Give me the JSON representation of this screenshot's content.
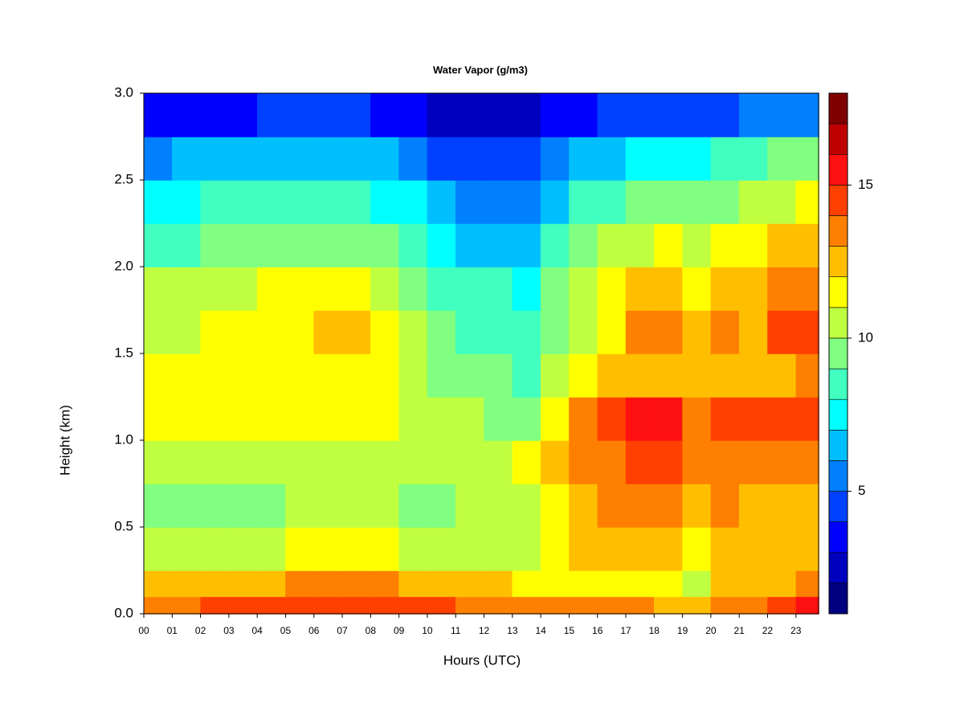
{
  "chart_data": {
    "type": "contour",
    "title": "Water Vapor (g/m3)",
    "x_label": "Hours (UTC)",
    "y_label": "Height (km)",
    "x": [
      0,
      1,
      2,
      3,
      4,
      5,
      6,
      7,
      8,
      9,
      10,
      11,
      12,
      13,
      14,
      15,
      16,
      17,
      18,
      19,
      20,
      21,
      22,
      23
    ],
    "y": [
      0,
      0.1,
      0.25,
      0.5,
      0.75,
      1.0,
      1.25,
      1.5,
      1.75,
      2.0,
      2.25,
      2.5,
      2.75
    ],
    "z": [
      [
        13.5,
        13.5,
        14,
        14,
        14,
        14.5,
        14.5,
        14.5,
        14.5,
        14,
        14,
        13.5,
        13.5,
        13,
        13,
        13,
        13,
        13,
        12.5,
        12.5,
        13.5,
        13.5,
        14,
        15
      ],
      [
        12,
        12,
        12.5,
        12.5,
        12.5,
        13,
        13,
        13,
        13,
        12.5,
        12.5,
        12,
        12,
        11.5,
        11.5,
        11.5,
        11.5,
        11,
        11,
        10.5,
        12,
        12,
        12.5,
        13
      ],
      [
        10.5,
        10.5,
        10.5,
        10.5,
        10.5,
        11,
        11,
        11,
        11,
        10.5,
        10.5,
        10.5,
        10,
        10.5,
        11,
        12,
        12,
        12,
        12,
        11,
        12,
        12,
        12.5,
        12.5
      ],
      [
        9.5,
        9.5,
        9.5,
        9.5,
        9.5,
        10,
        10,
        10,
        10,
        9.5,
        9.5,
        10,
        10,
        10.5,
        11,
        12.5,
        13,
        13,
        13,
        12,
        13,
        12.5,
        12.5,
        12.5
      ],
      [
        10,
        10,
        10,
        10,
        10,
        10,
        10,
        10,
        10,
        10,
        10,
        10,
        10,
        11,
        12,
        13,
        13.5,
        14,
        14,
        13,
        13.5,
        13,
        13.5,
        13.5
      ],
      [
        11,
        11,
        11,
        11,
        11,
        11,
        11,
        11,
        11,
        10.5,
        10.5,
        10,
        9.5,
        9,
        11,
        13.5,
        14,
        15,
        15,
        13.5,
        14.5,
        14,
        14.5,
        14.5
      ],
      [
        11,
        11,
        11,
        11,
        11.5,
        11.5,
        11.5,
        11.5,
        11,
        10.5,
        9.5,
        9.5,
        9,
        8.5,
        10,
        11,
        12,
        12.5,
        12.5,
        12,
        12.5,
        12,
        12.5,
        13
      ],
      [
        10.5,
        10.5,
        11,
        11,
        11.5,
        11.5,
        12,
        12,
        11.5,
        10.5,
        9,
        8.5,
        8.5,
        8,
        9.5,
        10.5,
        11.5,
        13,
        13.5,
        12,
        13,
        12.5,
        14,
        14
      ],
      [
        10,
        10,
        10.5,
        10.5,
        11,
        11,
        11.5,
        11,
        10.5,
        9.5,
        8.5,
        8,
        8,
        7.5,
        9,
        10,
        11,
        12,
        12.5,
        11.5,
        12.5,
        12,
        13.5,
        13.5
      ],
      [
        8.5,
        8.5,
        9,
        9,
        9.5,
        9.5,
        9.5,
        9.5,
        9,
        8,
        7,
        6.5,
        6.5,
        6.5,
        8,
        9,
        10,
        10.5,
        11,
        10.5,
        11,
        11,
        12,
        12.5
      ],
      [
        7.5,
        7.5,
        8,
        8,
        8,
        8.5,
        8.5,
        8,
        7.5,
        7,
        6,
        5.5,
        5.5,
        5.5,
        6.5,
        8,
        8.5,
        9,
        9.5,
        9,
        9.5,
        10,
        10.5,
        11
      ],
      [
        5.5,
        6,
        6,
        6,
        6,
        6.5,
        6.5,
        6,
        6,
        5,
        4.5,
        4,
        4,
        4,
        5,
        6,
        6.5,
        7,
        7.5,
        7.5,
        8,
        8.5,
        9,
        9
      ],
      [
        3.5,
        3.5,
        3.5,
        3.5,
        4,
        4,
        4,
        4,
        3.5,
        3,
        2.5,
        2.5,
        2.5,
        2.5,
        3,
        3.5,
        4,
        4.5,
        4.5,
        4.5,
        4.5,
        5,
        5,
        5.5
      ]
    ],
    "xlim": [
      0,
      23.8
    ],
    "ylim": [
      0,
      3
    ],
    "xticks": [
      {
        "value": 0,
        "label": "00"
      },
      {
        "value": 1,
        "label": "01"
      },
      {
        "value": 2,
        "label": "02"
      },
      {
        "value": 3,
        "label": "03"
      },
      {
        "value": 4,
        "label": "04"
      },
      {
        "value": 5,
        "label": "05"
      },
      {
        "value": 6,
        "label": "06"
      },
      {
        "value": 7,
        "label": "07"
      },
      {
        "value": 8,
        "label": "08"
      },
      {
        "value": 9,
        "label": "09"
      },
      10,
      11,
      12,
      13,
      14,
      15,
      16,
      17,
      18,
      19,
      20,
      21,
      22,
      23
    ],
    "yticks": [
      {
        "value": 0,
        "label": "0.0"
      },
      0.5,
      {
        "value": 1,
        "label": "1.0"
      },
      1.5,
      {
        "value": 2,
        "label": "2.0"
      },
      2.5,
      {
        "value": 3,
        "label": "3.0"
      }
    ],
    "levels": [
      1,
      2,
      3,
      4,
      5,
      6,
      7,
      8,
      9,
      10,
      11,
      12,
      13,
      14,
      15,
      16,
      17,
      18
    ],
    "colors": [
      "#000080",
      "#0000bf",
      "#0000ff",
      "#0040ff",
      "#0080ff",
      "#00bfff",
      "#00ffff",
      "#40ffbf",
      "#80ff80",
      "#bfff40",
      "#ffff00",
      "#ffbf00",
      "#ff8000",
      "#ff4000",
      "#ff1010",
      "#c00000",
      "#800000"
    ],
    "colorbar_ticks": [
      5,
      10,
      15
    ]
  }
}
